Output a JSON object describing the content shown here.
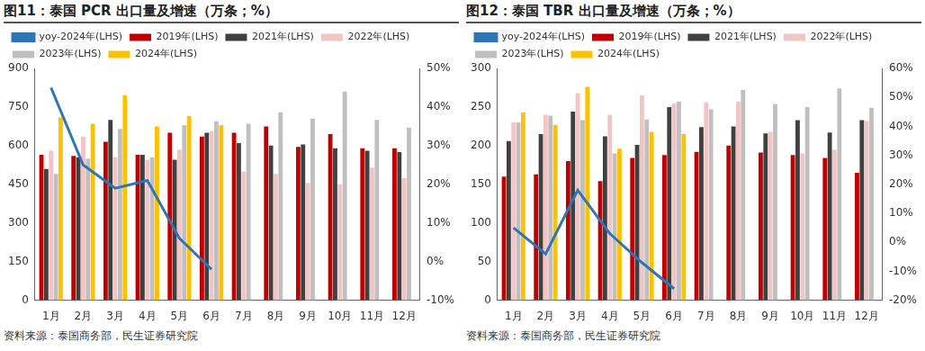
{
  "chart_data": [
    {
      "type": "bar",
      "title": "图11：泰国 PCR 出口量及增速（万条；%）",
      "source": "资料来源：泰国商务部，民生证券研究院",
      "categories": [
        "1月",
        "2月",
        "3月",
        "4月",
        "5月",
        "6月",
        "7月",
        "8月",
        "9月",
        "10月",
        "11月",
        "12月"
      ],
      "series": [
        {
          "name": "2019年(LHS)",
          "color": "#c00000",
          "values": [
            565,
            560,
            615,
            565,
            650,
            635,
            650,
            675,
            595,
            645,
            590,
            590
          ]
        },
        {
          "name": "2021年(LHS)",
          "color": "#404040",
          "values": [
            510,
            555,
            700,
            565,
            545,
            650,
            610,
            600,
            605,
            590,
            580,
            575
          ]
        },
        {
          "name": "2022年(LHS)",
          "color": "#f2c4c4",
          "values": [
            580,
            635,
            555,
            545,
            585,
            655,
            500,
            490,
            455,
            450,
            515,
            475
          ]
        },
        {
          "name": "2023年(LHS)",
          "color": "#bfbfbf",
          "values": [
            490,
            550,
            665,
            555,
            680,
            695,
            685,
            730,
            705,
            810,
            700,
            670
          ]
        },
        {
          "name": "2024年(LHS)",
          "color": "#ffc000",
          "values": [
            710,
            685,
            795,
            675,
            715,
            680,
            null,
            null,
            null,
            null,
            null,
            null
          ]
        },
        {
          "name": "yoy-2024年(LHS)",
          "color": "#2e75b6",
          "type": "line",
          "axis": "y2",
          "values": [
            45,
            25,
            19,
            21,
            6,
            -2,
            null,
            null,
            null,
            null,
            null,
            null
          ]
        }
      ],
      "ylim": [
        0,
        900
      ],
      "yticks": [
        0,
        150,
        300,
        450,
        600,
        750,
        900
      ],
      "y2lim": [
        -10,
        50
      ],
      "y2ticks": [
        {
          "value": -10,
          "label": "-10%"
        },
        {
          "value": 0,
          "label": "0%"
        },
        {
          "value": 10,
          "label": "10%"
        },
        {
          "value": 20,
          "label": "20%"
        },
        {
          "value": 30,
          "label": "30%"
        },
        {
          "value": 40,
          "label": "40%"
        },
        {
          "value": 50,
          "label": "50%"
        }
      ],
      "grid": false,
      "legend": "top"
    },
    {
      "type": "bar",
      "title": "图12：泰国 TBR 出口量及增速（万条；%）",
      "source": "资料来源：泰国商务部，民生证券研究院",
      "categories": [
        "1月",
        "2月",
        "3月",
        "4月",
        "5月",
        "6月",
        "7月",
        "8月",
        "9月",
        "10月",
        "11月",
        "12月"
      ],
      "series": [
        {
          "name": "2019年(LHS)",
          "color": "#c00000",
          "values": [
            160,
            163,
            180,
            154,
            184,
            188,
            192,
            200,
            191,
            188,
            184,
            165
          ]
        },
        {
          "name": "2021年(LHS)",
          "color": "#404040",
          "values": [
            206,
            215,
            244,
            212,
            201,
            250,
            224,
            225,
            216,
            233,
            217,
            233
          ]
        },
        {
          "name": "2022年(LHS)",
          "color": "#f2c4c4",
          "values": [
            230,
            240,
            268,
            240,
            265,
            255,
            256,
            257,
            218,
            190,
            195,
            232
          ]
        },
        {
          "name": "2023年(LHS)",
          "color": "#bfbfbf",
          "values": [
            230,
            239,
            233,
            190,
            234,
            257,
            247,
            272,
            254,
            250,
            274,
            249
          ]
        },
        {
          "name": "2024年(LHS)",
          "color": "#ffc000",
          "values": [
            243,
            227,
            276,
            196,
            218,
            215,
            null,
            null,
            null,
            null,
            null,
            null
          ]
        },
        {
          "name": "yoy-2024年(LHS)",
          "color": "#2e75b6",
          "type": "line",
          "axis": "y2",
          "values": [
            5,
            -4,
            18,
            3,
            -7,
            -16,
            null,
            null,
            null,
            null,
            null,
            null
          ]
        }
      ],
      "ylim": [
        0,
        300
      ],
      "yticks": [
        0,
        50,
        100,
        150,
        200,
        250,
        300
      ],
      "y2lim": [
        -20,
        60
      ],
      "y2ticks": [
        {
          "value": -20,
          "label": "-20%"
        },
        {
          "value": -10,
          "label": "-10%"
        },
        {
          "value": 0,
          "label": "0%"
        },
        {
          "value": 10,
          "label": "10%"
        },
        {
          "value": 20,
          "label": "20%"
        },
        {
          "value": 30,
          "label": "30%"
        },
        {
          "value": 40,
          "label": "40%"
        },
        {
          "value": 50,
          "label": "50%"
        },
        {
          "value": 60,
          "label": "60%"
        }
      ],
      "grid": false,
      "legend": "top"
    }
  ]
}
